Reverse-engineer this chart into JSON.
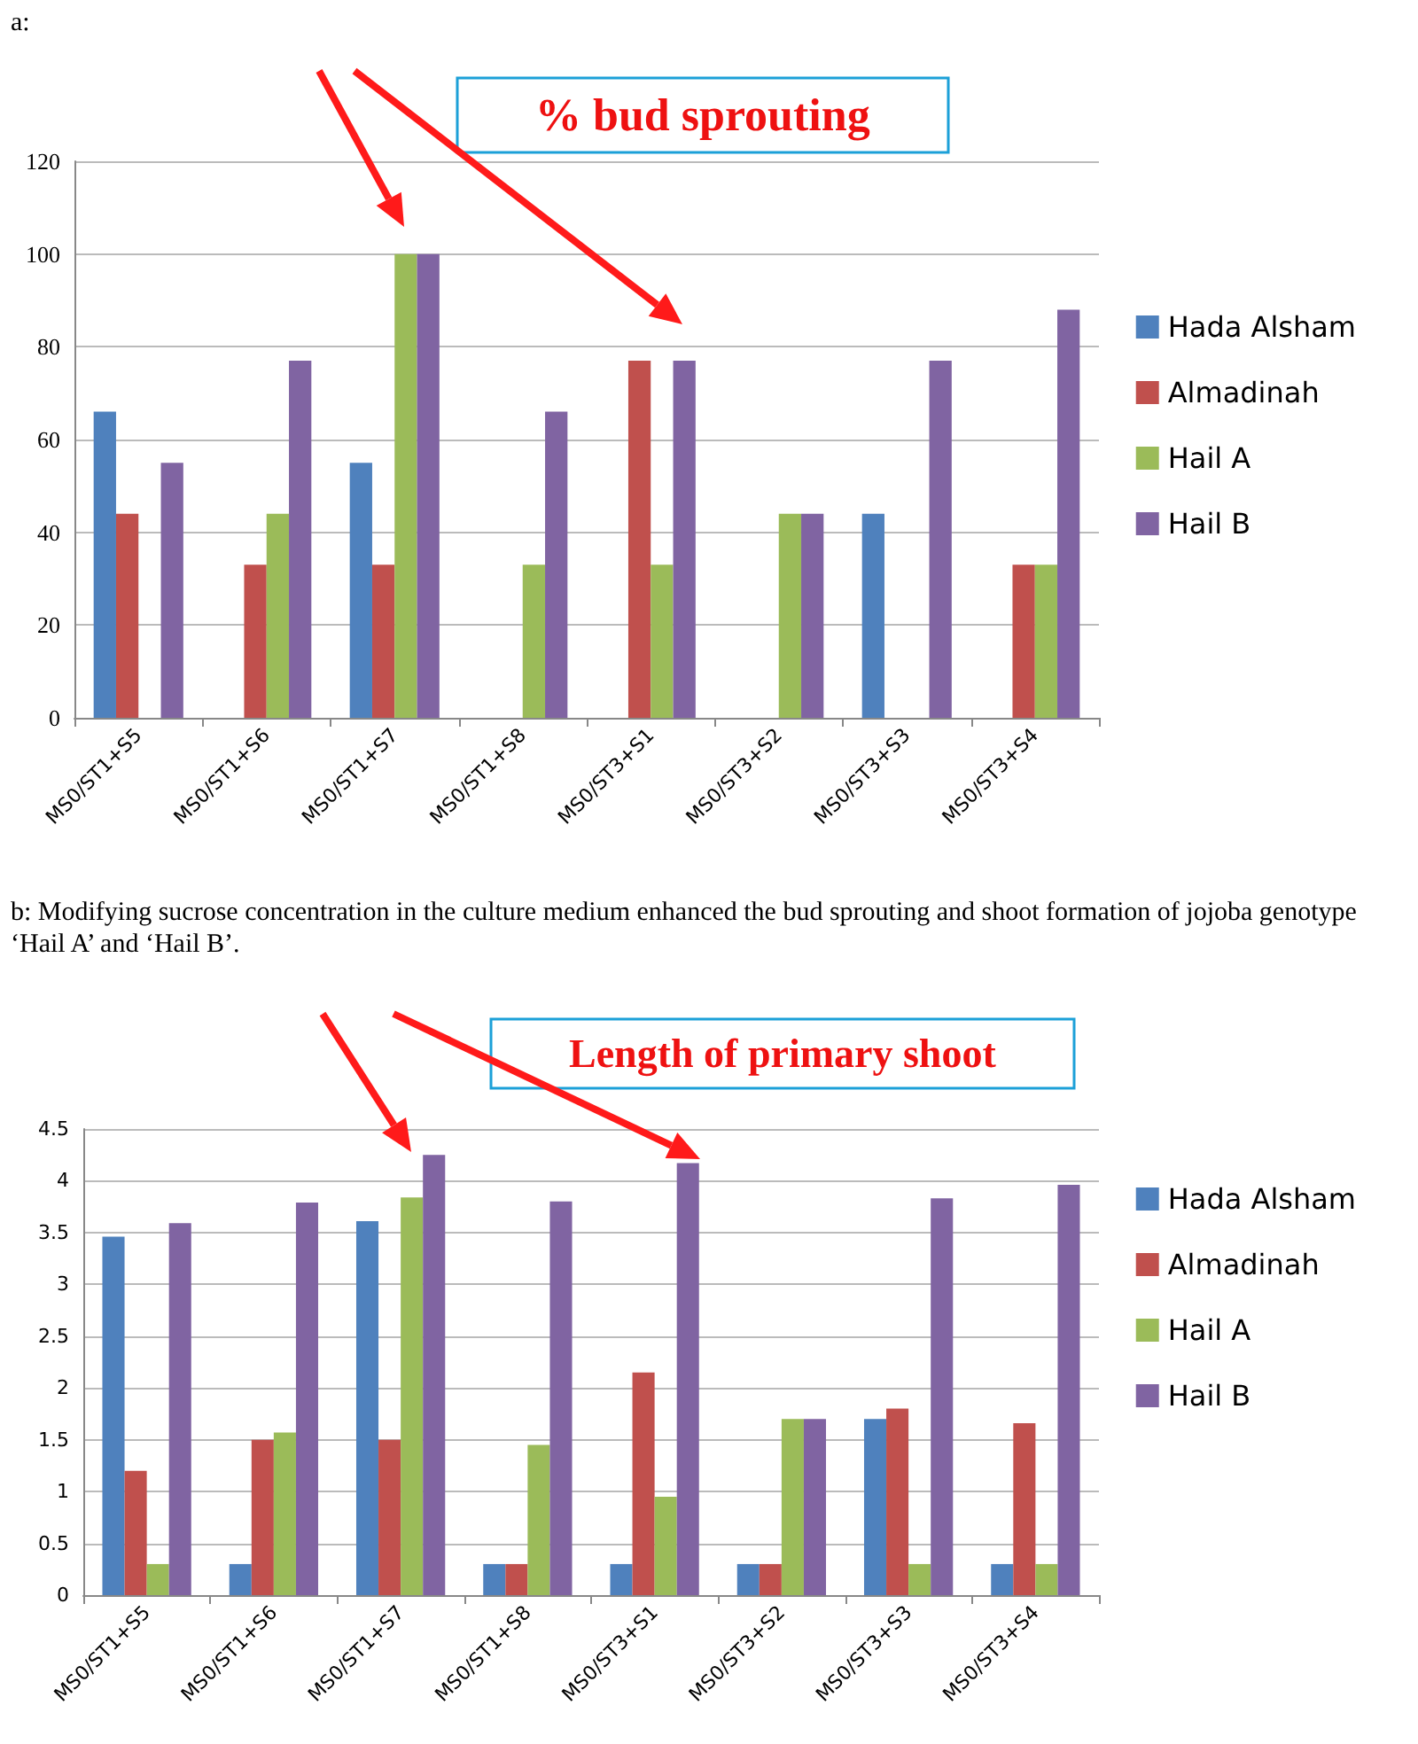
{
  "chart_data": [
    {
      "type": "bar",
      "title": "% bud sprouting",
      "annotations": [
        "a:"
      ],
      "categories": [
        "MS0/ST1+S5",
        "MS0/ST1+S6",
        "MS0/ST1+S7",
        "MS0/ST1+S8",
        "MS0/ST3+S1",
        "MS0/ST3+S2",
        "MS0/ST3+S3",
        "MS0/ST3+S4"
      ],
      "series": [
        {
          "name": "Hada Alsham",
          "color": "#4f81bd",
          "values": [
            66,
            0,
            55,
            0,
            0,
            0,
            44,
            0
          ]
        },
        {
          "name": "Almadinah",
          "color": "#c0504d",
          "values": [
            44,
            33,
            33,
            0,
            77,
            0,
            0,
            33
          ]
        },
        {
          "name": "Hail A",
          "color": "#9bbb59",
          "values": [
            0,
            44,
            100,
            33,
            33,
            44,
            0,
            33
          ]
        },
        {
          "name": "Hail B",
          "color": "#8064a2",
          "values": [
            55,
            77,
            100,
            66,
            77,
            44,
            77,
            88
          ]
        }
      ],
      "ylim": [
        0,
        120
      ],
      "yticks": [
        0,
        20,
        40,
        60,
        80,
        100,
        120
      ],
      "grid": "y",
      "legend": "right"
    },
    {
      "type": "bar",
      "title": "Length of primary shoot",
      "annotations": [
        "b: Modifying sucrose concentration in the culture medium enhanced the bud sprouting and shoot formation of jojoba genotype ‘Hail A’ and ‘Hail B’."
      ],
      "categories": [
        "MS0/ST1+S5",
        "MS0/ST1+S6",
        "MS0/ST1+S7",
        "MS0/ST1+S8",
        "MS0/ST3+S1",
        "MS0/ST3+S2",
        "MS0/ST3+S3",
        "MS0/ST3+S4"
      ],
      "series": [
        {
          "name": "Hada Alsham",
          "color": "#4f81bd",
          "values": [
            3.46,
            0.3,
            3.61,
            0.3,
            0.3,
            0.3,
            1.7,
            0.3
          ]
        },
        {
          "name": "Almadinah",
          "color": "#c0504d",
          "values": [
            1.2,
            1.5,
            1.5,
            0.3,
            2.15,
            0.3,
            1.8,
            1.66
          ]
        },
        {
          "name": "Hail A",
          "color": "#9bbb59",
          "values": [
            0.3,
            1.57,
            3.84,
            1.45,
            0.95,
            1.7,
            0.3,
            0.3
          ]
        },
        {
          "name": "Hail B",
          "color": "#8064a2",
          "values": [
            3.59,
            3.79,
            4.25,
            3.8,
            4.17,
            1.7,
            3.83,
            3.96
          ]
        }
      ],
      "ylim": [
        0,
        4.5
      ],
      "yticks": [
        0,
        0.5,
        1,
        1.5,
        2,
        2.5,
        3,
        3.5,
        4,
        4.5
      ],
      "grid": "y",
      "legend": "right"
    }
  ]
}
